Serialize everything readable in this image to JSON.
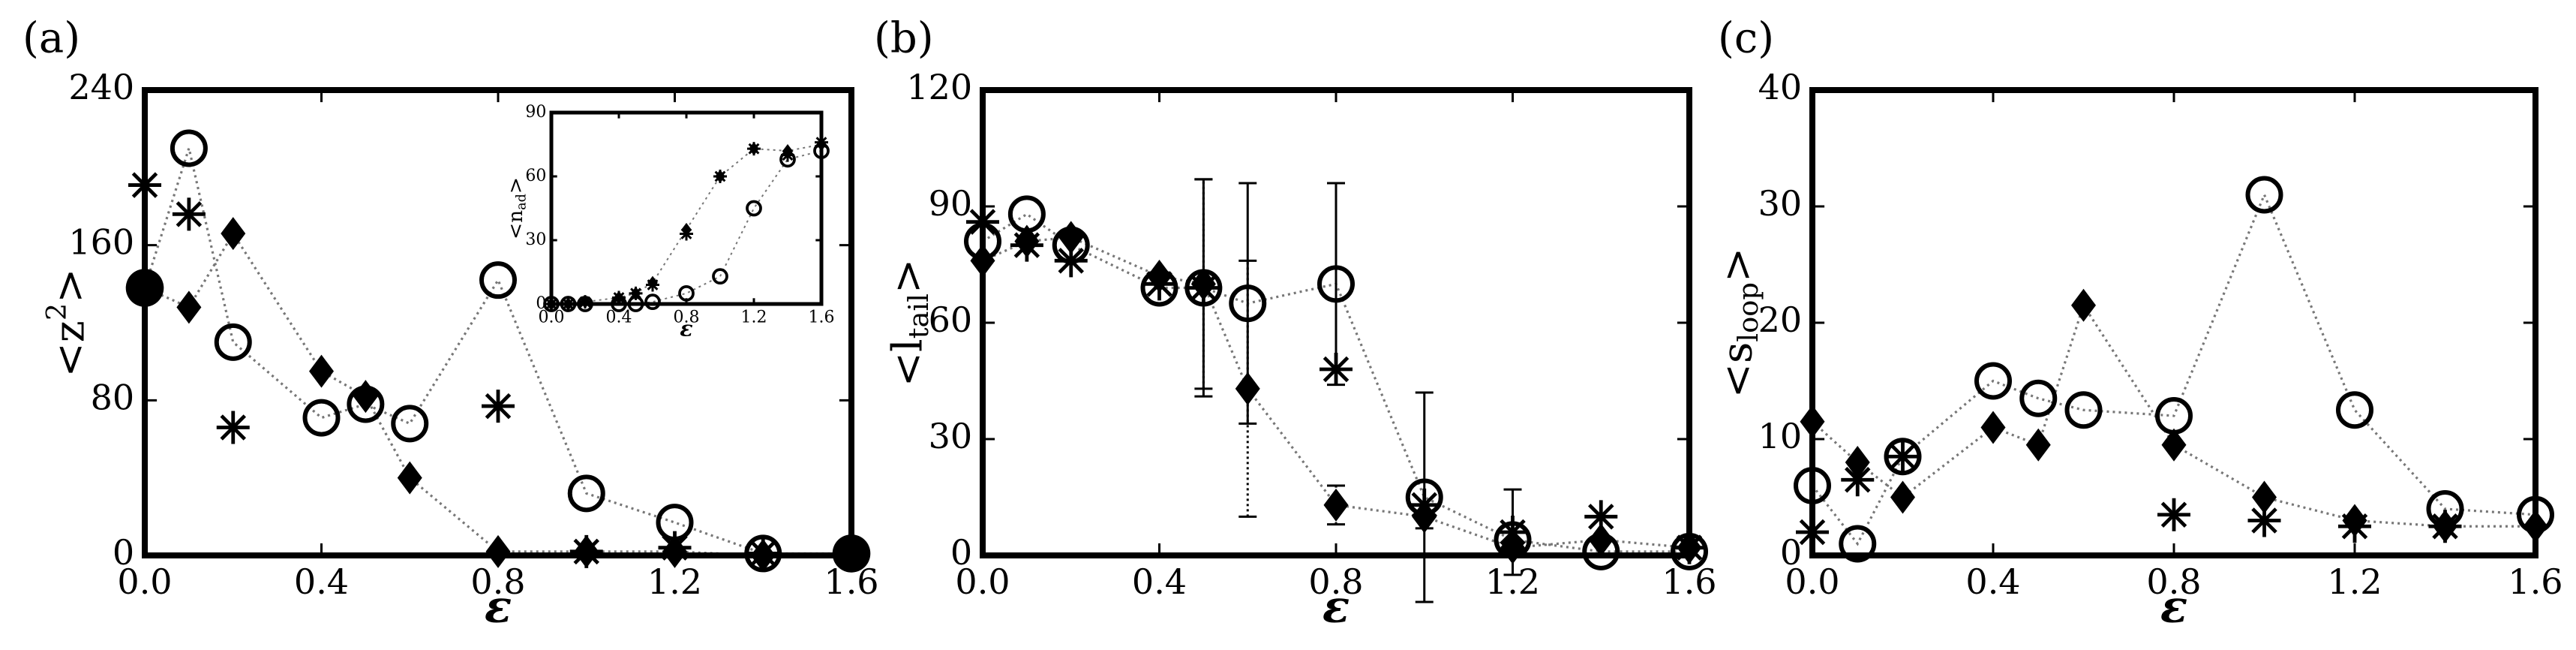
{
  "chart_data": [
    {
      "type": "scatter",
      "panel_label": "(a)",
      "xlabel": "ε",
      "ylabel": {
        "text": "<z",
        "sup": "2",
        "close": ">"
      },
      "x": [
        0,
        0.1,
        0.2,
        0.4,
        0.5,
        0.6,
        0.8,
        1.0,
        1.2,
        1.4,
        1.6
      ],
      "xlim": [
        0,
        1.6
      ],
      "xticks": [
        {
          "value": 0,
          "label": "0.0"
        },
        0.4,
        0.8,
        1.2,
        1.6
      ],
      "ylim": [
        0,
        240
      ],
      "yticks": [
        0,
        80,
        160,
        240
      ],
      "series": [
        {
          "marker": "circle",
          "color": "#000000",
          "line": "dotted",
          "values": [
            138,
            210,
            110,
            71,
            78,
            68,
            142,
            32,
            17,
            1,
            1
          ]
        },
        {
          "marker": "diamond",
          "color": "#000000",
          "line": "dotted",
          "values": [
            138,
            128,
            166,
            95,
            82,
            40,
            2,
            2,
            2,
            0,
            0
          ]
        },
        {
          "marker": "asterisk",
          "color": "#000000",
          "values": [
            191,
            176,
            66,
            null,
            null,
            null,
            77,
            2,
            4,
            1,
            null
          ]
        },
        {
          "marker": "filled-circle",
          "color": "#000000",
          "values": [
            138,
            null,
            null,
            null,
            null,
            null,
            null,
            null,
            null,
            null,
            1
          ]
        }
      ]
    },
    {
      "type": "scatter",
      "panel_label": "(b)",
      "xlabel": "ε",
      "ylabel": {
        "text": "<l",
        "sub": "tail",
        "close": ">"
      },
      "x": [
        0,
        0.1,
        0.2,
        0.4,
        0.5,
        0.6,
        0.8,
        1.0,
        1.2,
        1.4,
        1.6
      ],
      "xlim": [
        0,
        1.6
      ],
      "xticks": [
        {
          "value": 0,
          "label": "0.0"
        },
        0.4,
        0.8,
        1.2,
        1.6
      ],
      "ylim": [
        0,
        120
      ],
      "yticks": [
        0,
        30,
        60,
        90,
        120
      ],
      "series": [
        {
          "marker": "circle",
          "color": "#000000",
          "line": "dotted",
          "values": [
            81,
            88,
            80,
            69,
            69,
            65,
            70,
            15,
            4,
            1,
            1
          ],
          "errors": [
            null,
            null,
            null,
            null,
            28,
            31,
            26,
            27,
            null,
            null,
            null
          ]
        },
        {
          "marker": "diamond",
          "color": "#000000",
          "line": "dotted",
          "values": [
            76,
            81,
            82,
            72,
            70,
            43,
            13,
            10,
            2,
            4,
            2
          ],
          "errors": [
            null,
            null,
            null,
            null,
            27,
            33,
            5,
            3,
            null,
            null,
            null
          ]
        },
        {
          "marker": "asterisk",
          "color": "#000000",
          "values": [
            86,
            80,
            76,
            70,
            69,
            null,
            48,
            13,
            6,
            10,
            2
          ],
          "errors": [
            null,
            null,
            null,
            null,
            null,
            null,
            null,
            null,
            11,
            null,
            null
          ]
        }
      ]
    },
    {
      "type": "scatter",
      "panel_label": "(c)",
      "xlabel": "ε",
      "ylabel": {
        "text": "<s",
        "sub": "loop",
        "close": ">"
      },
      "x": [
        0,
        0.1,
        0.2,
        0.4,
        0.5,
        0.6,
        0.8,
        1.0,
        1.2,
        1.4,
        1.6
      ],
      "xlim": [
        0,
        1.6
      ],
      "xticks": [
        {
          "value": 0,
          "label": "0.0"
        },
        0.4,
        0.8,
        1.2,
        1.6
      ],
      "ylim": [
        0,
        40
      ],
      "yticks": [
        0,
        10,
        20,
        30,
        40
      ],
      "series": [
        {
          "marker": "circle",
          "color": "#000000",
          "line": "dotted",
          "values": [
            6,
            1,
            8.5,
            15,
            13.5,
            12.5,
            12,
            31,
            12.5,
            4,
            3.5
          ]
        },
        {
          "marker": "diamond",
          "color": "#000000",
          "line": "dotted",
          "values": [
            11.5,
            8,
            5,
            11,
            9.5,
            21.5,
            9.5,
            5,
            3,
            2.5,
            2.5
          ]
        },
        {
          "marker": "asterisk",
          "color": "#000000",
          "values": [
            2,
            6.5,
            8.5,
            null,
            null,
            null,
            3.5,
            3,
            2.5,
            2.5,
            null
          ]
        }
      ]
    },
    {
      "type": "scatter",
      "xlabel": "ε",
      "ylabel": {
        "text": "<n",
        "sub": "ad",
        "close": ">"
      },
      "x": [
        0,
        0.1,
        0.2,
        0.4,
        0.5,
        0.6,
        0.8,
        1.0,
        1.2,
        1.4,
        1.6
      ],
      "xlim": [
        0,
        1.6
      ],
      "xticks": [
        {
          "value": 0,
          "label": "0.0"
        },
        0.4,
        0.8,
        1.2,
        1.6
      ],
      "ylim": [
        0,
        90
      ],
      "yticks": [
        0,
        30,
        60,
        90
      ],
      "series": [
        {
          "marker": "circle",
          "color": "#000000",
          "line": "dotted",
          "values": [
            0,
            0,
            0,
            0,
            0,
            1,
            5,
            13,
            45,
            68,
            72
          ]
        },
        {
          "marker": "diamond",
          "color": "#000000",
          "line": "dotted",
          "values": [
            0,
            0,
            1,
            3,
            5,
            10,
            35,
            60,
            73,
            72,
            75
          ]
        },
        {
          "marker": "asterisk",
          "color": "#000000",
          "values": [
            0,
            0,
            1,
            3,
            5,
            9,
            33,
            60,
            73,
            70,
            76
          ]
        }
      ]
    }
  ]
}
